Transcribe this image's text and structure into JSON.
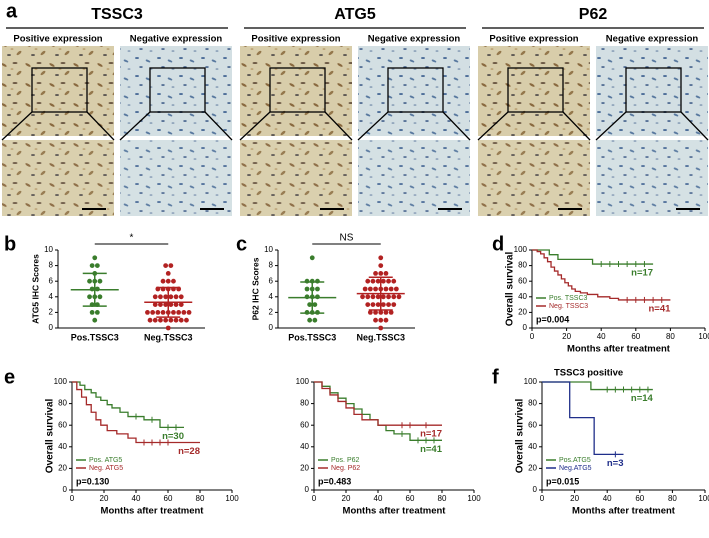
{
  "panel_a": {
    "letter": "a",
    "groups": [
      {
        "title": "TSSC3",
        "columns": [
          "Positive expression",
          "Negative expression"
        ]
      },
      {
        "title": "ATG5",
        "columns": [
          "Positive expression",
          "Negative expression"
        ]
      },
      {
        "title": "P62",
        "columns": [
          "Positive expression",
          "Negative expression"
        ]
      }
    ]
  },
  "chart_data": [
    {
      "type": "dotplot",
      "panel": "b",
      "y_label": "ATG5 IHC Scores",
      "significance": "*",
      "ylim": [
        0,
        10
      ],
      "yticks": [
        0,
        2,
        4,
        6,
        8,
        10
      ],
      "series": [
        {
          "name": "Pos.TSSC3",
          "color": "#3a7d2c",
          "mean": 4.9,
          "sd": 2.1,
          "values": [
            9,
            8,
            8,
            7,
            6,
            6,
            6,
            5,
            5,
            4,
            4,
            4,
            3,
            3,
            2,
            2,
            1
          ]
        },
        {
          "name": "Neg.TSSC3",
          "color": "#b22222",
          "mean": 3.3,
          "sd": 1.9,
          "values": [
            8,
            8,
            7,
            6,
            6,
            6,
            5,
            5,
            5,
            5,
            5,
            4,
            4,
            4,
            4,
            4,
            4,
            3,
            3,
            3,
            3,
            3,
            3,
            2,
            2,
            2,
            2,
            2,
            2,
            2,
            2,
            2,
            1,
            1,
            1,
            1,
            1,
            1,
            1,
            1,
            0
          ]
        }
      ]
    },
    {
      "type": "dotplot",
      "panel": "c",
      "y_label": "P62 IHC Scores",
      "significance": "NS",
      "ylim": [
        0,
        10
      ],
      "yticks": [
        0,
        2,
        4,
        6,
        8,
        10
      ],
      "series": [
        {
          "name": "Pos.TSSC3",
          "color": "#3a7d2c",
          "mean": 3.9,
          "sd": 2.0,
          "values": [
            9,
            6,
            6,
            6,
            5,
            5,
            5,
            4,
            4,
            4,
            3,
            3,
            2,
            2,
            2,
            1,
            1
          ]
        },
        {
          "name": "Neg.TSSC3",
          "color": "#b22222",
          "mean": 4.4,
          "sd": 2.1,
          "values": [
            9,
            8,
            7,
            7,
            7,
            6,
            6,
            6,
            6,
            6,
            6,
            5,
            5,
            5,
            5,
            5,
            5,
            5,
            4,
            4,
            4,
            4,
            4,
            4,
            4,
            4,
            3,
            3,
            3,
            3,
            3,
            3,
            2,
            2,
            2,
            2,
            2,
            1,
            1,
            1,
            0
          ]
        }
      ]
    },
    {
      "type": "survival",
      "panel": "d",
      "y_label": "Overall survival",
      "x_label": "Months after treatment",
      "p_value": "p=0.004",
      "xlim": [
        0,
        100
      ],
      "xticks": [
        0,
        20,
        40,
        60,
        80,
        100
      ],
      "ylim": [
        0,
        100
      ],
      "yticks": [
        0,
        20,
        40,
        60,
        80,
        100
      ],
      "series": [
        {
          "name": "Pos. TSSC3",
          "color": "#3a7d2c",
          "n_label": "n=17",
          "x": [
            0,
            10,
            15,
            30,
            35,
            70
          ],
          "values": [
            100,
            94,
            88,
            88,
            82,
            82
          ],
          "censored": [
            40,
            45,
            50,
            55,
            60,
            65
          ]
        },
        {
          "name": "Neg. TSSC3",
          "color": "#a52a2a",
          "n_label": "n=41",
          "x": [
            0,
            3,
            5,
            7,
            9,
            11,
            13,
            15,
            17,
            19,
            21,
            23,
            25,
            28,
            32,
            38,
            45,
            50,
            80
          ],
          "values": [
            100,
            98,
            95,
            90,
            85,
            78,
            73,
            68,
            63,
            58,
            54,
            50,
            47,
            45,
            43,
            40,
            38,
            36,
            36
          ],
          "censored": [
            55,
            60,
            65,
            70,
            75
          ]
        }
      ]
    },
    {
      "type": "survival",
      "panel": "e",
      "y_label": "Overall survival",
      "x_label": "Months after treatment",
      "p_value": "p=0.130",
      "xlim": [
        0,
        100
      ],
      "xticks": [
        0,
        20,
        40,
        60,
        80,
        100
      ],
      "ylim": [
        0,
        100
      ],
      "yticks": [
        0,
        20,
        40,
        60,
        80,
        100
      ],
      "series": [
        {
          "name": "Pos. ATG5",
          "color": "#3a7d2c",
          "n_label": "n=30",
          "x": [
            0,
            5,
            8,
            12,
            15,
            18,
            22,
            25,
            30,
            35,
            45,
            55,
            70
          ],
          "values": [
            100,
            97,
            93,
            90,
            86,
            83,
            79,
            76,
            72,
            68,
            65,
            58,
            58
          ],
          "censored": [
            40,
            50,
            60,
            65
          ]
        },
        {
          "name": "Neg. ATG5",
          "color": "#a52a2a",
          "n_label": "n=28",
          "x": [
            0,
            3,
            6,
            9,
            12,
            15,
            18,
            22,
            28,
            35,
            40,
            80
          ],
          "values": [
            100,
            93,
            86,
            79,
            72,
            65,
            60,
            55,
            52,
            48,
            44,
            44
          ],
          "censored": [
            45,
            50,
            55,
            60
          ]
        }
      ]
    },
    {
      "type": "survival",
      "x_label": "Months after treatment",
      "p_value": "p=0.483",
      "xlim": [
        0,
        100
      ],
      "xticks": [
        0,
        20,
        40,
        60,
        80,
        100
      ],
      "ylim": [
        0,
        100
      ],
      "yticks": [
        0,
        20,
        40,
        60,
        80,
        100
      ],
      "series": [
        {
          "name": "Pos. P62",
          "color": "#3a7d2c",
          "n_label": "n=41",
          "x": [
            0,
            5,
            10,
            15,
            20,
            25,
            30,
            35,
            40,
            45,
            50,
            60,
            80
          ],
          "values": [
            100,
            96,
            90,
            85,
            80,
            75,
            70,
            65,
            60,
            55,
            52,
            46,
            46
          ],
          "censored": [
            55,
            65,
            70,
            75
          ]
        },
        {
          "name": "Neg. P62",
          "color": "#a52a2a",
          "n_label": "n=17",
          "x": [
            0,
            5,
            10,
            15,
            20,
            25,
            30,
            40,
            50,
            80
          ],
          "values": [
            100,
            94,
            88,
            82,
            76,
            70,
            65,
            60,
            60,
            60
          ],
          "censored": [
            55,
            60,
            70
          ]
        }
      ]
    },
    {
      "type": "survival",
      "panel": "f",
      "title": "TSSC3 positive",
      "y_label": "Overall survival",
      "x_label": "Months after treatment",
      "p_value": "p=0.015",
      "xlim": [
        0,
        100
      ],
      "xticks": [
        0,
        20,
        40,
        60,
        80,
        100
      ],
      "ylim": [
        0,
        100
      ],
      "yticks": [
        0,
        20,
        40,
        60,
        80,
        100
      ],
      "series": [
        {
          "name": "Pos.ATG5",
          "color": "#3a7d2c",
          "n_label": "n=14",
          "x": [
            0,
            30,
            68
          ],
          "values": [
            100,
            93,
            93
          ],
          "censored": [
            40,
            45,
            50,
            55,
            60,
            65
          ]
        },
        {
          "name": "Neg.ATG5",
          "color": "#1f2e8a",
          "n_label": "n=3",
          "x": [
            0,
            17,
            32,
            50
          ],
          "values": [
            100,
            67,
            33,
            33
          ],
          "censored": [
            45
          ]
        }
      ]
    }
  ]
}
